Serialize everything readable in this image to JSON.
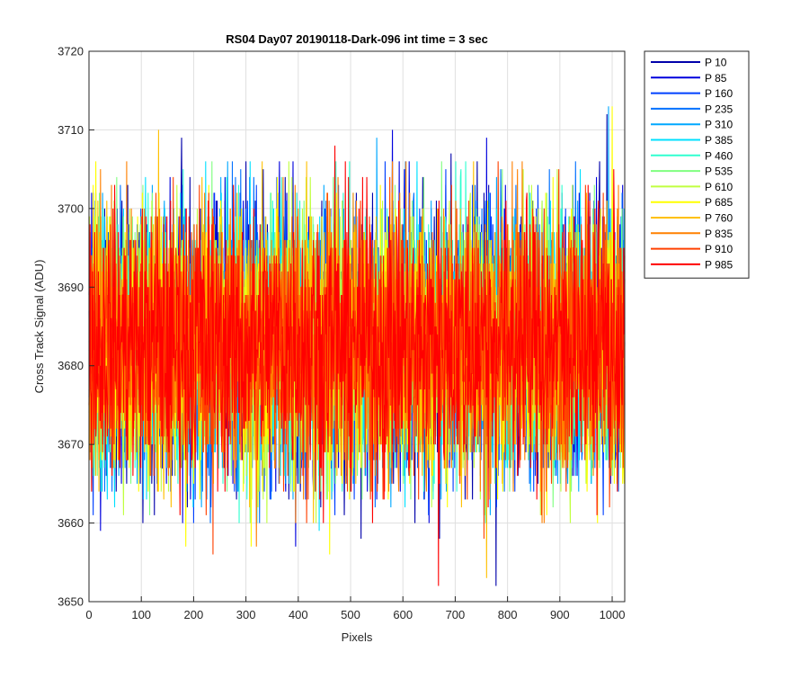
{
  "chart_data": {
    "type": "line",
    "title": "RS04 Day07 20190118-Dark-096 int time = 3 sec",
    "xlabel": "Pixels",
    "ylabel": "Cross Track Signal (ADU)",
    "xlim": [
      0,
      1024
    ],
    "ylim": [
      3650,
      3720
    ],
    "xticks": [
      0,
      100,
      200,
      300,
      400,
      500,
      600,
      700,
      800,
      900,
      1000
    ],
    "yticks": [
      3650,
      3660,
      3670,
      3680,
      3690,
      3700,
      3710,
      3720
    ],
    "grid": true,
    "legend_position": "outside-top-right",
    "series": [
      {
        "name": "P 10",
        "color": "#0000aa",
        "mean": 3683,
        "noise": 8.5,
        "spikes": [
          [
            177,
            3709
          ],
          [
            520,
            3658
          ],
          [
            670,
            3658
          ],
          [
            692,
            3707
          ],
          [
            778,
            3652
          ],
          [
            990,
            3712
          ]
        ]
      },
      {
        "name": "P 85",
        "color": "#0000dd",
        "mean": 3683,
        "noise": 8.5,
        "spikes": [
          [
            22,
            3659
          ],
          [
            395,
            3657
          ],
          [
            580,
            3710
          ],
          [
            760,
            3709
          ]
        ]
      },
      {
        "name": "P 160",
        "color": "#0040ff",
        "mean": 3683,
        "noise": 8.5,
        "spikes": [
          [
            320,
            3703
          ],
          [
            470,
            3661
          ],
          [
            850,
            3664
          ]
        ]
      },
      {
        "name": "P 235",
        "color": "#0070ff",
        "mean": 3683,
        "noise": 8.5,
        "spikes": [
          [
            290,
            3705
          ],
          [
            605,
            3706
          ],
          [
            880,
            3705
          ]
        ]
      },
      {
        "name": "P 310",
        "color": "#00a8ff",
        "mean": 3683,
        "noise": 8.5,
        "spikes": [
          [
            265,
            3706
          ],
          [
            550,
            3709
          ],
          [
            993,
            3713
          ]
        ]
      },
      {
        "name": "P 385",
        "color": "#00e0ff",
        "mean": 3683,
        "noise": 8.5,
        "spikes": [
          [
            110,
            3663
          ],
          [
            440,
            3659
          ],
          [
            960,
            3665
          ]
        ]
      },
      {
        "name": "P 460",
        "color": "#30ffd0",
        "mean": 3683,
        "noise": 8.5,
        "spikes": [
          [
            180,
            3705
          ],
          [
            710,
            3704
          ]
        ]
      },
      {
        "name": "P 535",
        "color": "#80ff80",
        "mean": 3683,
        "noise": 8.5,
        "spikes": [
          [
            235,
            3706
          ],
          [
            640,
            3704
          ]
        ]
      },
      {
        "name": "P 610",
        "color": "#c0ff40",
        "mean": 3683,
        "noise": 8.5,
        "spikes": [
          [
            830,
            3705
          ],
          [
            920,
            3660
          ]
        ]
      },
      {
        "name": "P 685",
        "color": "#ffff00",
        "mean": 3683,
        "noise": 8.5,
        "spikes": [
          [
            185,
            3657
          ],
          [
            310,
            3657
          ],
          [
            460,
            3656
          ],
          [
            972,
            3660
          ],
          [
            1000,
            3713
          ]
        ]
      },
      {
        "name": "P 760",
        "color": "#ffc000",
        "mean": 3683,
        "noise": 8.5,
        "spikes": [
          [
            133,
            3710
          ],
          [
            760,
            3653
          ]
        ]
      },
      {
        "name": "P 835",
        "color": "#ff8000",
        "mean": 3683,
        "noise": 8.5,
        "spikes": [
          [
            72,
            3706
          ],
          [
            320,
            3657
          ],
          [
            870,
            3660
          ]
        ]
      },
      {
        "name": "P 910",
        "color": "#ff4000",
        "mean": 3683,
        "noise": 8.5,
        "spikes": [
          [
            237,
            3656
          ],
          [
            755,
            3658
          ]
        ]
      },
      {
        "name": "P 985",
        "color": "#ff0000",
        "mean": 3683,
        "noise": 8.5,
        "spikes": [
          [
            668,
            3652
          ],
          [
            470,
            3708
          ]
        ]
      }
    ]
  }
}
